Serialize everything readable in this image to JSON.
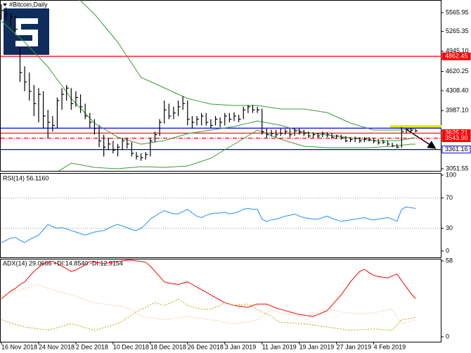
{
  "chart_data": [
    {
      "type": "ohlc",
      "title": "#Bitcoin,Daily",
      "categories": [
        "16 Nov 2018",
        null,
        null,
        null,
        null,
        null,
        null,
        null,
        "24 Nov 2018",
        null,
        null,
        null,
        null,
        null,
        null,
        null,
        "2 Dec 2018",
        null,
        null,
        null,
        null,
        null,
        null,
        null,
        "10 Dec 2018",
        null,
        null,
        null,
        null,
        null,
        null,
        null,
        "18 Dec 2018",
        null,
        null,
        null,
        null,
        null,
        null,
        null,
        "26 Dec 2018",
        null,
        null,
        null,
        null,
        null,
        null,
        null,
        "3 Jan 2019",
        null,
        null,
        null,
        null,
        null,
        null,
        null,
        "11 Jan 2019",
        null,
        null,
        null,
        null,
        null,
        null,
        null,
        "19 Jan 2019",
        null,
        null,
        null,
        null,
        null,
        null,
        null,
        "27 Jan 2019",
        null,
        null,
        null,
        null,
        null,
        null,
        null,
        "4 Feb 2019",
        null,
        null,
        null,
        null,
        null,
        null,
        null,
        null,
        null
      ],
      "color": "#000000",
      "high": [
        5700,
        5650,
        5560,
        5520,
        5000,
        4700,
        4600,
        4400,
        4350,
        4300,
        4000,
        3900,
        4200,
        4350,
        4400,
        4350,
        4300,
        4250,
        4100,
        3950,
        3850,
        3750,
        3600,
        3550,
        3500,
        3450,
        3550,
        3550,
        3480,
        3320,
        3300,
        3320,
        3550,
        3650,
        3850,
        4150,
        4100,
        4050,
        4150,
        4220,
        4150,
        3900,
        3900,
        3950,
        3950,
        3850,
        3900,
        3880,
        3950,
        3950,
        3960,
        3920,
        4050,
        4080,
        4080,
        4050,
        4020,
        3700,
        3680,
        3680,
        3700,
        3690,
        3700,
        3700,
        3700,
        3680,
        3650,
        3640,
        3630,
        3650,
        3640,
        3630,
        3600,
        3600,
        3580,
        3560,
        3570,
        3560,
        3560,
        3560,
        3550,
        3530,
        3520,
        3500,
        3470,
        3450,
        3720,
        3700,
        3700,
        3690
      ],
      "low": [
        5450,
        5450,
        5350,
        5250,
        4450,
        4300,
        4150,
        3900,
        3800,
        3700,
        3550,
        3650,
        3700,
        4000,
        4150,
        4000,
        4050,
        3950,
        3850,
        3700,
        3600,
        3400,
        3250,
        3350,
        3300,
        3250,
        3350,
        3380,
        3250,
        3200,
        3180,
        3200,
        3250,
        3480,
        3580,
        3780,
        3850,
        3850,
        3900,
        4000,
        3750,
        3700,
        3750,
        3750,
        3750,
        3700,
        3750,
        3720,
        3750,
        3800,
        3820,
        3800,
        3850,
        3950,
        3950,
        3950,
        3600,
        3550,
        3570,
        3560,
        3580,
        3600,
        3560,
        3580,
        3600,
        3580,
        3550,
        3550,
        3540,
        3560,
        3560,
        3530,
        3530,
        3520,
        3480,
        3480,
        3480,
        3470,
        3480,
        3490,
        3460,
        3440,
        3450,
        3420,
        3400,
        3380,
        3390,
        3620,
        3640,
        3640
      ],
      "close": [
        5600,
        5550,
        5500,
        5300,
        4600,
        4450,
        4300,
        4100,
        4250,
        3900,
        3800,
        3750,
        4150,
        4250,
        4350,
        4100,
        4200,
        4050,
        3900,
        3800,
        3700,
        3500,
        3400,
        3450,
        3350,
        3400,
        3500,
        3450,
        3300,
        3250,
        3230,
        3280,
        3500,
        3600,
        3800,
        4000,
        3900,
        3950,
        4050,
        4100,
        3850,
        3800,
        3850,
        3900,
        3800,
        3750,
        3850,
        3800,
        3900,
        3850,
        3900,
        3850,
        4000,
        4050,
        4000,
        4000,
        3650,
        3600,
        3620,
        3600,
        3620,
        3650,
        3600,
        3660,
        3640,
        3620,
        3580,
        3600,
        3580,
        3620,
        3600,
        3560,
        3580,
        3550,
        3500,
        3520,
        3540,
        3500,
        3530,
        3520,
        3500,
        3470,
        3480,
        3450,
        3420,
        3400,
        3650,
        3680,
        3670,
        3660
      ],
      "bands": {
        "color": "#3a9a3a",
        "upper": [
          6000,
          6000,
          6000,
          6000,
          6000,
          6000,
          6020,
          6040,
          6060,
          6080,
          6100,
          6060,
          6020,
          5980,
          5940,
          5900,
          5829,
          5757,
          5686,
          5614,
          5543,
          5452,
          5362,
          5271,
          5181,
          5090,
          4977,
          4864,
          4750,
          4637,
          4524,
          4490,
          4456,
          4422,
          4388,
          4354,
          4320,
          4286,
          4252,
          4218,
          4184,
          4166,
          4148,
          4129,
          4111,
          4093,
          4089,
          4084,
          4080,
          4075,
          4071,
          4071,
          4071,
          4071,
          4071,
          4071,
          4060,
          4048,
          4037,
          4025,
          4014,
          4014,
          4014,
          4014,
          4014,
          4014,
          4003,
          3991,
          3980,
          3968,
          3957,
          3923,
          3889,
          3855,
          3821,
          3787,
          3764,
          3742,
          3719,
          3697,
          3674,
          3674,
          3674,
          3674,
          3674,
          3674,
          3680,
          3686,
          3691,
          3697
        ],
        "middle": [
          5430,
          5362,
          5294,
          5226,
          5158,
          5090,
          5011,
          4932,
          4852,
          4773,
          4694,
          4592,
          4490,
          4388,
          4286,
          4184,
          4105,
          4025,
          3946,
          3866,
          3787,
          3742,
          3696,
          3651,
          3605,
          3560,
          3537,
          3515,
          3492,
          3470,
          3447,
          3458,
          3470,
          3481,
          3493,
          3504,
          3527,
          3549,
          3572,
          3594,
          3617,
          3628,
          3640,
          3651,
          3663,
          3674,
          3685,
          3697,
          3708,
          3720,
          3731,
          3749,
          3767,
          3785,
          3803,
          3821,
          3807,
          3794,
          3780,
          3767,
          3753,
          3730,
          3708,
          3685,
          3663,
          3640,
          3631,
          3622,
          3613,
          3604,
          3595,
          3586,
          3577,
          3567,
          3558,
          3549,
          3540,
          3531,
          3522,
          3513,
          3504,
          3504,
          3504,
          3504,
          3504,
          3504,
          3515,
          3526,
          3538,
          3549
        ],
        "lower": [
          2900,
          2900,
          2900,
          2900,
          2900,
          2900,
          2900,
          2900,
          2900,
          2900,
          2900,
          2950,
          3000,
          3047,
          3094,
          3141,
          3127,
          3114,
          3100,
          3087,
          3073,
          3069,
          3064,
          3060,
          3055,
          3051,
          3058,
          3065,
          3071,
          3078,
          3085,
          3083,
          3080,
          3078,
          3075,
          3073,
          3078,
          3082,
          3087,
          3091,
          3096,
          3121,
          3146,
          3171,
          3196,
          3221,
          3266,
          3311,
          3357,
          3402,
          3447,
          3492,
          3538,
          3583,
          3628,
          3674,
          3645,
          3615,
          3586,
          3556,
          3527,
          3504,
          3481,
          3459,
          3436,
          3413,
          3409,
          3404,
          3400,
          3395,
          3391,
          3391,
          3391,
          3391,
          3391,
          3391,
          3391,
          3391,
          3391,
          3391,
          3395,
          3400,
          3404,
          3409,
          3413,
          3421,
          3430,
          3438,
          3447,
          3447
        ]
      },
      "levels": [
        {
          "value": 4862.45,
          "color": "#ff0000",
          "style": "solid",
          "show_label": true
        },
        {
          "value": 3705,
          "color": "#0000ff",
          "style": "solid",
          "show_label": false
        },
        {
          "value": 3625.21,
          "color": "#ff0000",
          "style": "solid",
          "show_label": true
        },
        {
          "value": 3543.9,
          "label": "3543.90",
          "color": "#ff0000",
          "style": "dashdot",
          "show_label": true
        },
        {
          "value": 3361.16,
          "color": "#0000ff",
          "style": "solid",
          "show_label": true
        }
      ],
      "ylim": [
        3017,
        5770
      ],
      "yticks": [
        5565.95,
        5265.35,
        {
          "value": 4945.1,
          "label": "4945.10"
        },
        4620.25,
        {
          "value": 4308.4,
          "label": "4308.40"
        },
        {
          "value": 3987.1,
          "label": "3987.10"
        },
        3051.55
      ]
    },
    {
      "type": "line",
      "title": "RSI(14) 56.1160",
      "color": "#1e90ff",
      "values": [
        11,
        14,
        17,
        18,
        14,
        11,
        15,
        18,
        21,
        28,
        35,
        32,
        30,
        31,
        29,
        27,
        25,
        23,
        21,
        23,
        25,
        26,
        27,
        30,
        33,
        35,
        33,
        31,
        28,
        27,
        30,
        35,
        42,
        46,
        50,
        53,
        51,
        49,
        49,
        52,
        55,
        50,
        46,
        44,
        47,
        49,
        50,
        50,
        51,
        49,
        50,
        52,
        55,
        56,
        55,
        55,
        42,
        39,
        41,
        42,
        44,
        46,
        47,
        49,
        46,
        44,
        43,
        42,
        42,
        44,
        46,
        43,
        41,
        39,
        40,
        41,
        42,
        43,
        44,
        42,
        41,
        42,
        43,
        44,
        42,
        39,
        55,
        58,
        57,
        56.116
      ],
      "ylim": [
        -8.4,
        102.8
      ],
      "yticks": [
        0,
        30,
        70,
        100
      ],
      "levels": [
        30,
        70
      ]
    },
    {
      "type": "line",
      "title": "ADX(14) 29.0666 +DI:14.8540 -DI:12.9154",
      "series": [
        {
          "color": "#ff0000",
          "dash": "none",
          "values": [
            29,
            32,
            35,
            37,
            40,
            42,
            46,
            50,
            53,
            56,
            57,
            57.5,
            56,
            54,
            52,
            50,
            51,
            53,
            55,
            57.5,
            57,
            56.5,
            56,
            56.5,
            57,
            57.5,
            58,
            58.5,
            58.5,
            58,
            57.5,
            57,
            54,
            50,
            46,
            42,
            41,
            40.5,
            40,
            41,
            42,
            40,
            38,
            36,
            34,
            32,
            30,
            28,
            26,
            25,
            24,
            23.5,
            23,
            22.5,
            24,
            25,
            25,
            25,
            23.5,
            22,
            21,
            20,
            19,
            18,
            17,
            16.6,
            16,
            15.6,
            17,
            18.5,
            20,
            24,
            28,
            32,
            37,
            42,
            46,
            50,
            51.6,
            49,
            47,
            46,
            45.5,
            45,
            46.5,
            48,
            43,
            38,
            33,
            29.0666
          ]
        },
        {
          "color": "#b8a800",
          "dash": "2 2",
          "values": [
            13,
            12,
            10.5,
            9.5,
            8.5,
            7.5,
            7,
            6.5,
            6,
            5.5,
            5,
            6,
            7,
            8,
            9,
            10,
            9,
            8,
            7,
            6,
            5,
            6,
            7,
            8,
            9,
            10,
            12,
            14.5,
            16.5,
            19,
            21,
            22.5,
            24.5,
            26,
            25,
            24,
            25.5,
            27,
            29,
            26.5,
            24,
            23,
            22,
            21,
            21,
            21,
            22.5,
            24,
            26,
            25,
            24,
            24.5,
            24.5,
            25,
            23,
            21,
            19,
            17.5,
            15.6,
            13,
            11,
            11,
            10.5,
            10.5,
            10,
            10,
            9.5,
            9,
            8.5,
            8,
            7.5,
            7,
            6.5,
            6,
            5.5,
            5,
            5.2,
            5.4,
            5.6,
            5.8,
            6,
            5.8,
            5.5,
            5.2,
            5,
            9,
            13,
            13.5,
            14,
            14.854
          ]
        },
        {
          "color": "#f0c8a0",
          "dash": "2 2",
          "values": [
            32,
            33,
            34,
            35,
            36,
            37,
            38,
            39,
            40,
            38.5,
            37,
            36,
            35,
            34,
            33,
            32,
            31,
            29.5,
            28.5,
            27,
            26,
            25.5,
            25,
            24.5,
            24,
            24,
            23,
            22,
            21,
            18,
            15.6,
            15,
            14.5,
            14,
            13.5,
            13,
            13.5,
            14,
            14.5,
            15,
            15.6,
            15,
            14.5,
            14,
            13.5,
            13,
            12.5,
            12,
            11,
            10.5,
            10,
            10.5,
            11,
            11.5,
            12,
            13,
            15.5,
            18,
            21,
            19.5,
            18,
            17.5,
            17,
            16.5,
            16,
            15.6,
            16.5,
            17.5,
            18.5,
            20,
            21,
            20.5,
            20,
            19,
            18.5,
            18,
            18,
            18,
            18,
            18,
            18,
            19,
            20,
            20.5,
            21,
            15,
            10,
            11,
            12,
            12.9154
          ]
        }
      ],
      "ylim": [
        -3.8,
        59.6
      ],
      "yticks": [
        0,
        58
      ]
    }
  ]
}
